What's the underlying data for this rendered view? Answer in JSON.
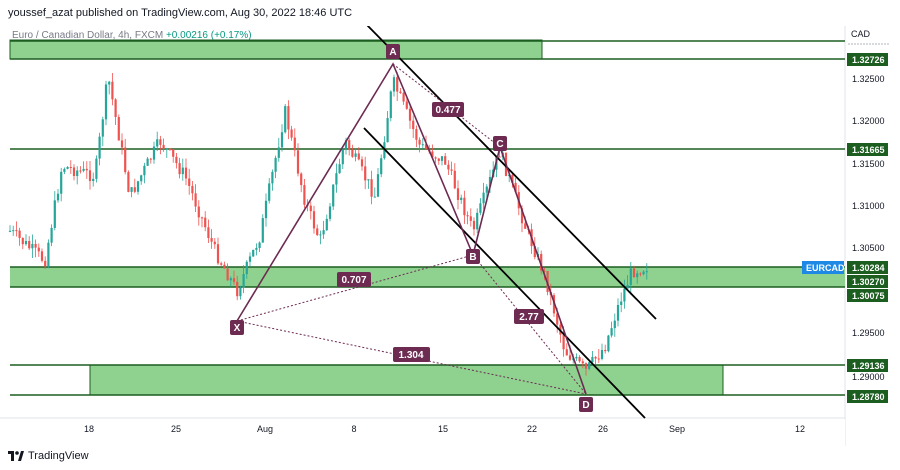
{
  "header": {
    "published": "youssef_azat published on TradingView.com, Aug 30, 2022 18:46 UTC"
  },
  "legend": {
    "symbol": "Euro / Canadian Dollar, 4h, FXCM",
    "change": "+0.00216 (+0.17%)"
  },
  "price_axis": {
    "currency": "CAD",
    "ticks": [
      "1.32500",
      "1.32000",
      "1.31500",
      "1.31000",
      "1.30500",
      "1.29500",
      "1.29000"
    ],
    "level_labels": [
      "1.32726",
      "1.31665",
      "1.30284",
      "1.30270",
      "1.30075",
      "1.29136",
      "1.28780"
    ],
    "symbol_tag": "EURCAD",
    "symbol_tag_color": "#1e88e5"
  },
  "time_axis": {
    "ticks": [
      "18",
      "25",
      "Aug",
      "8",
      "15",
      "22",
      "26",
      "Sep",
      "12"
    ]
  },
  "pattern": {
    "points": [
      "A",
      "B",
      "C",
      "D",
      "X"
    ],
    "ratios": [
      "0.477",
      "0.707",
      "2.77",
      "1.304"
    ],
    "color": "#6d2b52"
  },
  "colors": {
    "zone_fill": "#8fd18f",
    "level_line": "#1b5e20",
    "bull": "#26a69a",
    "bear": "#ef5350"
  },
  "footer": {
    "brand": "TradingView"
  }
}
